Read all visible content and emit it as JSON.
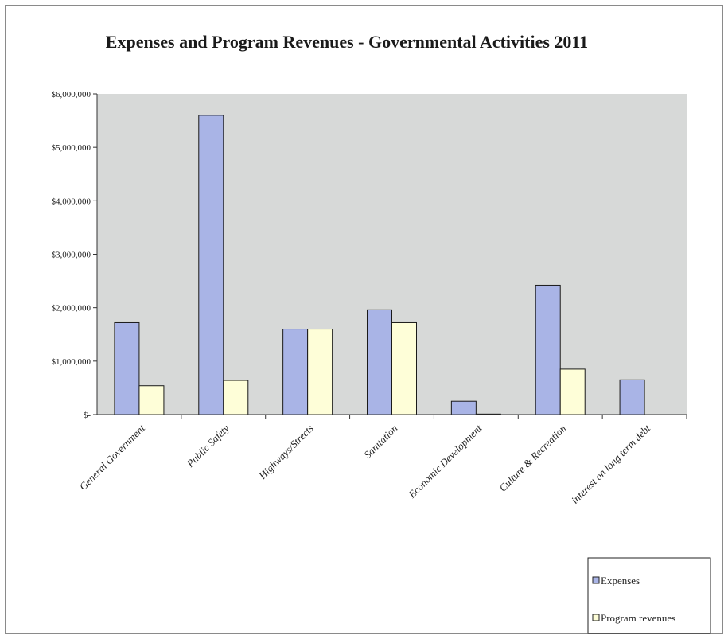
{
  "chart_data": {
    "type": "bar",
    "title": "Expenses and Program Revenues - Governmental Activities 2011",
    "categories": [
      "General Government",
      "Public Safety",
      "Highways/Streets",
      "Sanitation",
      "Economic Development",
      "Culture & Recreation",
      "interest on long term debt"
    ],
    "series": [
      {
        "name": "Expenses",
        "values": [
          1720000,
          5600000,
          1600000,
          1960000,
          250000,
          2420000,
          650000
        ]
      },
      {
        "name": "Program revenues",
        "values": [
          540000,
          640000,
          1600000,
          1720000,
          10000,
          850000,
          0
        ]
      }
    ],
    "ylim": [
      0,
      6000000
    ],
    "yticks": [
      0,
      1000000,
      2000000,
      3000000,
      4000000,
      5000000,
      6000000
    ],
    "ytick_labels": [
      "$-",
      "$1,000,000",
      "$2,000,000",
      "$3,000,000",
      "$4,000,000",
      "$5,000,000",
      "$6,000,000"
    ],
    "legend_position": "bottom-right",
    "grid": false,
    "colors": {
      "plot_bg": "#d7d9d8",
      "Expenses": "#a9b4e6",
      "Program revenues": "#fefed8",
      "bar_edge": "#1a1a1a"
    }
  }
}
